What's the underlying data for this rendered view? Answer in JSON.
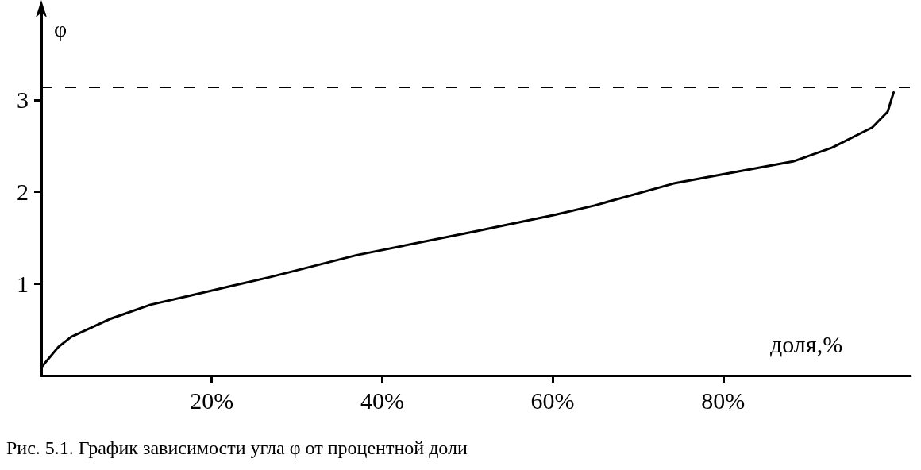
{
  "chart_data": {
    "type": "line",
    "xlabel": "доля,%",
    "ylabel": "φ",
    "annotations": [
      "Рис. 5.1. График зависимости угла φ от процентной доли"
    ],
    "x": [
      0,
      0.1,
      2.0,
      3.5,
      8.2,
      12.8,
      17.5,
      22.1,
      26.8,
      37.0,
      51,
      60.3,
      64.9,
      74.2,
      88.2,
      92.8,
      97.5,
      99.3,
      100
    ],
    "series": [
      {
        "color": "#000000",
        "values": [
          0.08,
          0.1,
          0.31,
          0.42,
          0.62,
          0.77,
          0.87,
          0.97,
          1.07,
          1.31,
          1.57,
          1.75,
          1.85,
          2.09,
          2.33,
          2.48,
          2.7,
          2.87,
          3.08
        ]
      }
    ],
    "xlim": [
      0,
      102
    ],
    "xticks": [
      {
        "value": 20,
        "label": "20%"
      },
      {
        "value": 40,
        "label": "40%"
      },
      {
        "value": 60,
        "label": "60%"
      },
      {
        "value": 80,
        "label": "80%"
      }
    ],
    "ylim": [
      0,
      4
    ],
    "yticks": [
      1,
      2,
      3
    ],
    "ref_lines": [
      {
        "axis": "y",
        "value": 3.14,
        "color": "#000000",
        "line_style": "dashed"
      }
    ],
    "grid": false,
    "marker": "none",
    "line_style": "solid"
  }
}
